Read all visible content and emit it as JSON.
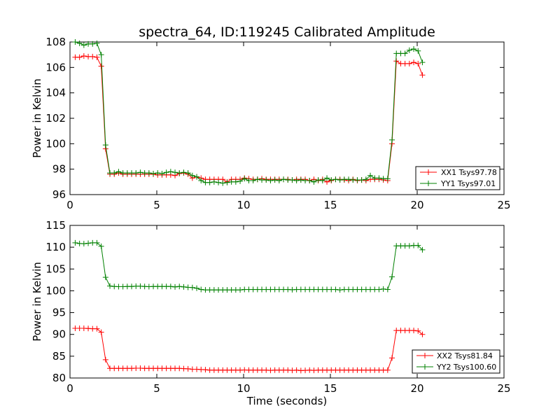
{
  "figure": {
    "title": "spectra_64, ID:119245 Calibrated Amplitude"
  },
  "chart_data": [
    {
      "type": "line",
      "title": "spectra_64, ID:119245 Calibrated Amplitude",
      "xlabel": "",
      "ylabel": "Power in Kelvin",
      "xlim": [
        0,
        25
      ],
      "ylim": [
        96,
        108
      ],
      "x_ticks": [
        "0",
        "5",
        "10",
        "15",
        "20",
        "25"
      ],
      "y_ticks": [
        "96",
        "98",
        "100",
        "102",
        "104",
        "106",
        "108"
      ],
      "grid": false,
      "legend_position": "lower-right",
      "x": [
        0.3,
        0.55,
        0.8,
        1.05,
        1.3,
        1.55,
        1.8,
        2.05,
        2.3,
        2.55,
        2.8,
        3.05,
        3.3,
        3.55,
        3.8,
        4.05,
        4.3,
        4.55,
        4.8,
        5.05,
        5.3,
        5.55,
        5.8,
        6.05,
        6.3,
        6.55,
        6.8,
        7.05,
        7.3,
        7.55,
        7.8,
        8.05,
        8.3,
        8.55,
        8.8,
        9.05,
        9.3,
        9.55,
        9.8,
        10.05,
        10.3,
        10.55,
        10.8,
        11.05,
        11.3,
        11.55,
        11.8,
        12.05,
        12.3,
        12.55,
        12.8,
        13.05,
        13.3,
        13.55,
        13.8,
        14.05,
        14.3,
        14.55,
        14.8,
        15.05,
        15.3,
        15.55,
        15.8,
        16.05,
        16.3,
        16.55,
        16.8,
        17.05,
        17.3,
        17.55,
        17.8,
        18.05,
        18.3,
        18.55,
        18.8,
        19.05,
        19.3,
        19.55,
        19.8,
        20.05,
        20.3
      ],
      "series": [
        {
          "name": "XX1 Tsys97.78",
          "color": "#ff0000",
          "values": [
            106.8,
            106.8,
            106.9,
            106.85,
            106.85,
            106.8,
            106.1,
            99.6,
            97.6,
            97.6,
            97.7,
            97.6,
            97.6,
            97.6,
            97.6,
            97.6,
            97.6,
            97.6,
            97.6,
            97.55,
            97.55,
            97.55,
            97.55,
            97.5,
            97.65,
            97.7,
            97.6,
            97.3,
            97.4,
            97.3,
            97.2,
            97.2,
            97.2,
            97.2,
            97.2,
            97.0,
            97.2,
            97.2,
            97.2,
            97.3,
            97.25,
            97.2,
            97.2,
            97.25,
            97.2,
            97.2,
            97.2,
            97.2,
            97.2,
            97.2,
            97.15,
            97.2,
            97.2,
            97.2,
            97.1,
            97.2,
            97.1,
            97.2,
            97.0,
            97.1,
            97.2,
            97.2,
            97.15,
            97.1,
            97.2,
            97.1,
            97.15,
            97.1,
            97.2,
            97.2,
            97.2,
            97.15,
            97.1,
            100.0,
            106.5,
            106.3,
            106.3,
            106.3,
            106.4,
            106.3,
            105.4
          ]
        },
        {
          "name": "YY1 Tsys97.01",
          "color": "#008000",
          "values": [
            108.0,
            107.9,
            107.75,
            107.85,
            107.85,
            107.9,
            107.0,
            99.9,
            97.7,
            97.7,
            97.8,
            97.7,
            97.7,
            97.7,
            97.7,
            97.75,
            97.7,
            97.7,
            97.65,
            97.7,
            97.65,
            97.75,
            97.8,
            97.75,
            97.7,
            97.75,
            97.7,
            97.5,
            97.4,
            97.1,
            96.95,
            96.95,
            97.0,
            96.95,
            96.9,
            96.95,
            97.0,
            97.0,
            97.05,
            97.25,
            97.1,
            97.1,
            97.2,
            97.15,
            97.15,
            97.1,
            97.15,
            97.1,
            97.2,
            97.15,
            97.15,
            97.1,
            97.15,
            97.1,
            97.1,
            97.0,
            97.15,
            97.1,
            97.3,
            97.15,
            97.2,
            97.15,
            97.2,
            97.2,
            97.15,
            97.15,
            97.15,
            97.2,
            97.5,
            97.3,
            97.3,
            97.25,
            97.25,
            100.3,
            107.1,
            107.1,
            107.1,
            107.35,
            107.45,
            107.3,
            106.4
          ]
        }
      ]
    },
    {
      "type": "line",
      "title": "",
      "xlabel": "Time (seconds)",
      "ylabel": "Power in Kelvin",
      "xlim": [
        0,
        25
      ],
      "ylim": [
        80,
        115
      ],
      "x_ticks": [
        "0",
        "5",
        "10",
        "15",
        "20",
        "25"
      ],
      "y_ticks": [
        "80",
        "85",
        "90",
        "95",
        "100",
        "105",
        "110",
        "115"
      ],
      "grid": false,
      "legend_position": "lower-right",
      "x": [
        0.3,
        0.55,
        0.8,
        1.05,
        1.3,
        1.55,
        1.8,
        2.05,
        2.3,
        2.55,
        2.8,
        3.05,
        3.3,
        3.55,
        3.8,
        4.05,
        4.3,
        4.55,
        4.8,
        5.05,
        5.3,
        5.55,
        5.8,
        6.05,
        6.3,
        6.55,
        6.8,
        7.05,
        7.3,
        7.55,
        7.8,
        8.05,
        8.3,
        8.55,
        8.8,
        9.05,
        9.3,
        9.55,
        9.8,
        10.05,
        10.3,
        10.55,
        10.8,
        11.05,
        11.3,
        11.55,
        11.8,
        12.05,
        12.3,
        12.55,
        12.8,
        13.05,
        13.3,
        13.55,
        13.8,
        14.05,
        14.3,
        14.55,
        14.8,
        15.05,
        15.3,
        15.55,
        15.8,
        16.05,
        16.3,
        16.55,
        16.8,
        17.05,
        17.3,
        17.55,
        17.8,
        18.05,
        18.3,
        18.55,
        18.8,
        19.05,
        19.3,
        19.55,
        19.8,
        20.05,
        20.3
      ],
      "series": [
        {
          "name": "XX2 Tsys81.84",
          "color": "#ff0000",
          "values": [
            91.4,
            91.4,
            91.4,
            91.35,
            91.3,
            91.3,
            90.5,
            84.2,
            82.2,
            82.2,
            82.2,
            82.2,
            82.2,
            82.2,
            82.25,
            82.25,
            82.2,
            82.2,
            82.2,
            82.2,
            82.2,
            82.2,
            82.2,
            82.2,
            82.2,
            82.15,
            82.1,
            82.0,
            82.0,
            81.95,
            81.9,
            81.8,
            81.8,
            81.8,
            81.8,
            81.8,
            81.8,
            81.8,
            81.8,
            81.85,
            81.8,
            81.8,
            81.8,
            81.8,
            81.8,
            81.75,
            81.8,
            81.8,
            81.8,
            81.8,
            81.75,
            81.8,
            81.7,
            81.75,
            81.8,
            81.75,
            81.8,
            81.8,
            81.8,
            81.8,
            81.8,
            81.8,
            81.8,
            81.8,
            81.8,
            81.8,
            81.8,
            81.8,
            81.8,
            81.8,
            81.8,
            81.8,
            81.8,
            84.6,
            90.9,
            90.9,
            90.9,
            90.9,
            90.9,
            90.8,
            90.0
          ]
        },
        {
          "name": "YY2 Tsys100.60",
          "color": "#008000",
          "values": [
            111.0,
            110.85,
            110.8,
            110.9,
            111.0,
            111.0,
            110.2,
            103.1,
            101.1,
            101.0,
            100.95,
            100.95,
            101.0,
            101.0,
            101.05,
            101.05,
            101.0,
            100.95,
            101.0,
            101.0,
            101.0,
            101.0,
            101.0,
            100.9,
            101.0,
            100.9,
            100.8,
            100.75,
            100.6,
            100.3,
            100.2,
            100.2,
            100.2,
            100.2,
            100.2,
            100.2,
            100.2,
            100.2,
            100.2,
            100.3,
            100.3,
            100.3,
            100.3,
            100.3,
            100.3,
            100.3,
            100.3,
            100.3,
            100.3,
            100.3,
            100.25,
            100.3,
            100.3,
            100.3,
            100.3,
            100.3,
            100.3,
            100.3,
            100.3,
            100.3,
            100.3,
            100.2,
            100.3,
            100.3,
            100.3,
            100.3,
            100.3,
            100.3,
            100.3,
            100.3,
            100.3,
            100.4,
            100.3,
            103.2,
            110.3,
            110.3,
            110.3,
            110.3,
            110.4,
            110.4,
            109.4
          ]
        }
      ]
    }
  ]
}
